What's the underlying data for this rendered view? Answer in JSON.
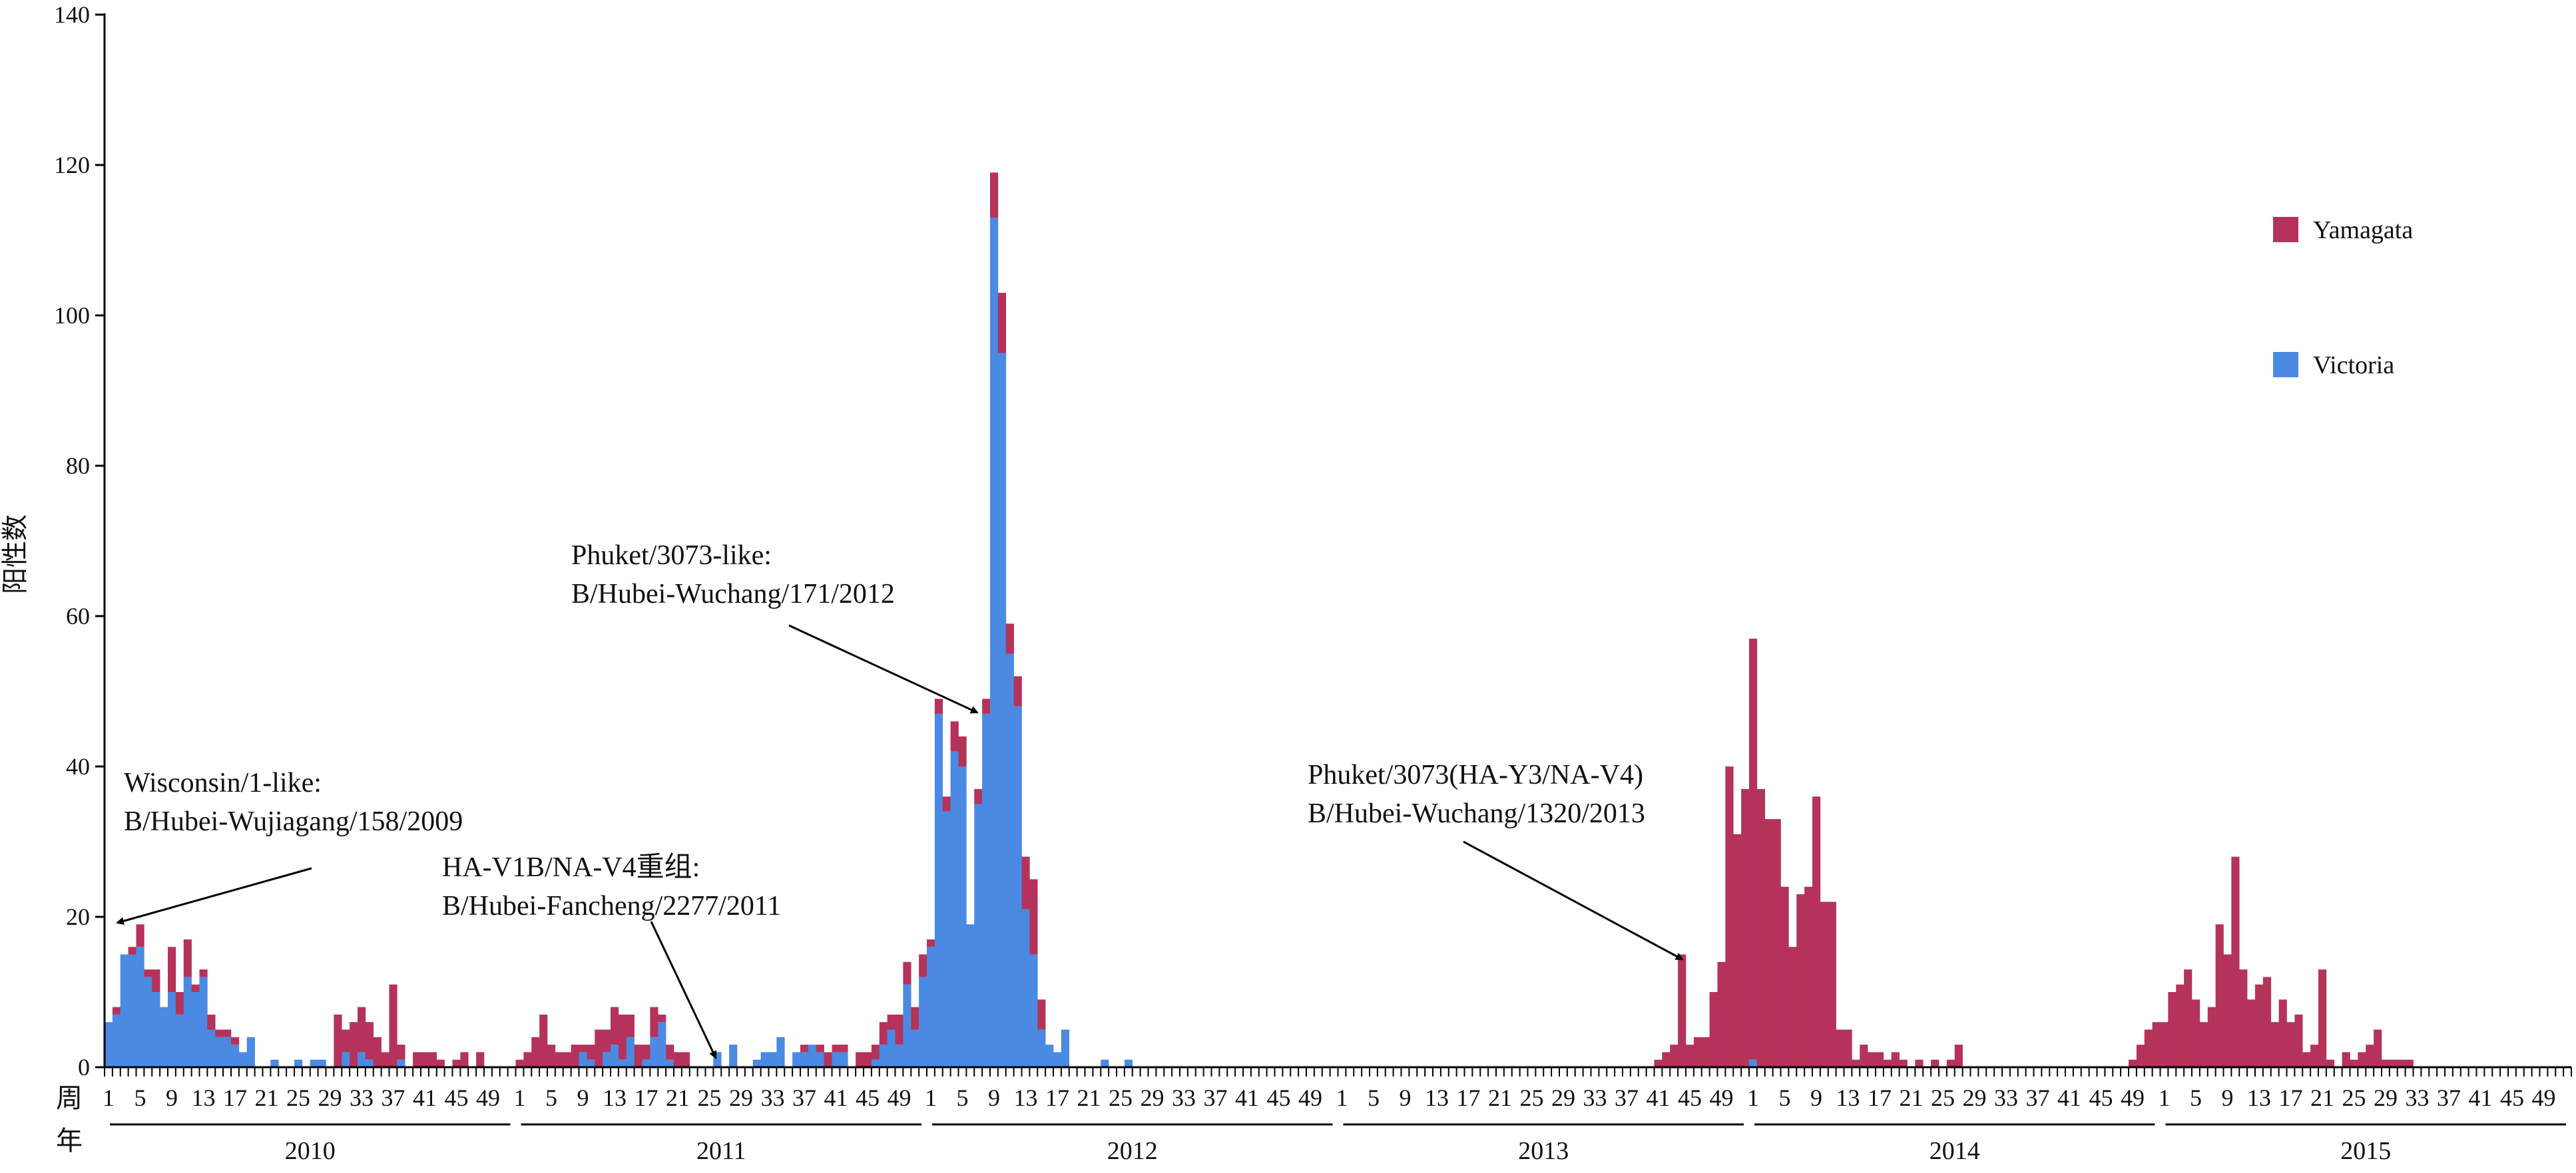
{
  "chart_data": {
    "type": "bar",
    "stacked": true,
    "ylabel": "阳性数",
    "xlabel_week": "周",
    "xlabel_year": "年",
    "ylim": [
      0,
      140
    ],
    "yticks": [
      0,
      20,
      40,
      60,
      80,
      100,
      120,
      140
    ],
    "week_tick_labels": [
      "1",
      "5",
      "9",
      "13",
      "17",
      "21",
      "25",
      "29",
      "33",
      "37",
      "41",
      "45",
      "49"
    ],
    "years": [
      "2010",
      "2011",
      "2012",
      "2013",
      "2014",
      "2015"
    ],
    "weeks_per_year": 52,
    "series": [
      {
        "name": "Victoria",
        "color": "#4a8ae3",
        "values": [
          6,
          7,
          15,
          15,
          16,
          12,
          10,
          8,
          10,
          7,
          12,
          10,
          12,
          5,
          4,
          4,
          3,
          2,
          4,
          0,
          0,
          1,
          0,
          0,
          1,
          0,
          1,
          1,
          0,
          0,
          2,
          0,
          2,
          1,
          0,
          0,
          0,
          1,
          0,
          0,
          0,
          0,
          0,
          0,
          0,
          0,
          0,
          0,
          0,
          0,
          0,
          0,
          0,
          0,
          0,
          0,
          0,
          0,
          0,
          0,
          2,
          1,
          0,
          2,
          3,
          1,
          4,
          0,
          1,
          4,
          6,
          1,
          0,
          0,
          0,
          0,
          0,
          2,
          0,
          3,
          0,
          0,
          1,
          2,
          2,
          4,
          0,
          2,
          2,
          3,
          2,
          0,
          2,
          2,
          0,
          0,
          0,
          1,
          3,
          5,
          3,
          11,
          5,
          12,
          16,
          47,
          34,
          42,
          40,
          19,
          35,
          47,
          113,
          95,
          55,
          48,
          21,
          15,
          5,
          3,
          2,
          5,
          0,
          0,
          0,
          0,
          1,
          0,
          0,
          1,
          0,
          0,
          0,
          0,
          0,
          0,
          0,
          0,
          0,
          0,
          0,
          0,
          0,
          0,
          0,
          0,
          0,
          0,
          0,
          0,
          0,
          0,
          0,
          0,
          0,
          0,
          0,
          0,
          0,
          0,
          0,
          0,
          0,
          0,
          0,
          0,
          0,
          0,
          0,
          0,
          0,
          0,
          0,
          0,
          0,
          0,
          0,
          0,
          0,
          0,
          0,
          0,
          0,
          0,
          0,
          0,
          0,
          0,
          0,
          0,
          0,
          0,
          0,
          0,
          0,
          0,
          0,
          0,
          0,
          0,
          0,
          0,
          0,
          0,
          0,
          0,
          0,
          0,
          1,
          0,
          0,
          0,
          0,
          0,
          0,
          0,
          0,
          0,
          0,
          0,
          0,
          0,
          0,
          0,
          0,
          0,
          0,
          0,
          0,
          0,
          0,
          0,
          0,
          0,
          0,
          0,
          0,
          0,
          0,
          0,
          0,
          0,
          0,
          0,
          0,
          0,
          0,
          0,
          0,
          0,
          0,
          0,
          0,
          0,
          0,
          0,
          0,
          0,
          0,
          0,
          0,
          0,
          0,
          0,
          0,
          0,
          0,
          0,
          0,
          0,
          0,
          0,
          0,
          0,
          0,
          0,
          0,
          0,
          0,
          0,
          0,
          0,
          0,
          0,
          0,
          0,
          0,
          0,
          0,
          0,
          0,
          0,
          0,
          0,
          0,
          0,
          0,
          0,
          0,
          0,
          0,
          0,
          0,
          0,
          0,
          0,
          0,
          0,
          0,
          0,
          0,
          0
        ]
      },
      {
        "name": "Yamagata",
        "color": "#b5335a",
        "values": [
          0,
          1,
          0,
          1,
          3,
          1,
          3,
          0,
          6,
          3,
          5,
          1,
          1,
          2,
          1,
          1,
          1,
          0,
          0,
          0,
          0,
          0,
          0,
          0,
          0,
          0,
          0,
          0,
          0,
          7,
          3,
          6,
          6,
          5,
          4,
          2,
          11,
          2,
          0,
          2,
          2,
          2,
          1,
          0,
          1,
          2,
          0,
          2,
          0,
          0,
          0,
          0,
          1,
          2,
          4,
          7,
          3,
          2,
          2,
          3,
          1,
          2,
          5,
          3,
          5,
          6,
          3,
          3,
          2,
          4,
          1,
          2,
          2,
          2,
          0,
          0,
          0,
          0,
          0,
          0,
          0,
          0,
          0,
          0,
          0,
          0,
          0,
          0,
          1,
          0,
          1,
          2,
          1,
          1,
          0,
          2,
          2,
          2,
          3,
          2,
          4,
          3,
          3,
          3,
          1,
          2,
          2,
          4,
          4,
          0,
          2,
          2,
          6,
          8,
          4,
          4,
          7,
          10,
          4,
          0,
          0,
          0,
          0,
          0,
          0,
          0,
          0,
          0,
          0,
          0,
          0,
          0,
          0,
          0,
          0,
          0,
          0,
          0,
          0,
          0,
          0,
          0,
          0,
          0,
          0,
          0,
          0,
          0,
          0,
          0,
          0,
          0,
          0,
          0,
          0,
          0,
          0,
          0,
          0,
          0,
          0,
          0,
          0,
          0,
          0,
          0,
          0,
          0,
          0,
          0,
          0,
          0,
          0,
          0,
          0,
          0,
          0,
          0,
          0,
          0,
          0,
          0,
          0,
          0,
          0,
          0,
          0,
          0,
          0,
          0,
          0,
          0,
          0,
          0,
          0,
          0,
          1,
          2,
          3,
          15,
          3,
          4,
          4,
          10,
          14,
          40,
          31,
          37,
          56,
          37,
          33,
          33,
          24,
          16,
          23,
          24,
          36,
          22,
          22,
          5,
          5,
          1,
          3,
          2,
          2,
          1,
          2,
          1,
          0,
          1,
          0,
          1,
          0,
          1,
          3,
          0,
          0,
          0,
          0,
          0,
          0,
          0,
          0,
          0,
          0,
          0,
          0,
          0,
          0,
          0,
          0,
          0,
          0,
          0,
          0,
          0,
          1,
          3,
          5,
          6,
          6,
          10,
          11,
          13,
          9,
          6,
          8,
          19,
          15,
          28,
          13,
          9,
          11,
          12,
          6,
          9,
          6,
          7,
          2,
          3,
          13,
          1,
          0,
          2,
          1,
          2,
          3,
          5,
          1,
          1,
          1,
          1,
          0,
          0,
          0,
          0,
          0,
          0,
          0,
          0,
          0,
          0,
          0,
          0,
          0,
          0,
          0,
          0
        ]
      }
    ],
    "annotations": [
      {
        "line1": "Wisconsin/1-like:",
        "line2": "B/Hubei-Wujiagang/158/2009"
      },
      {
        "line1": "HA-V1B/NA-V4重组:",
        "line2": "B/Hubei-Fancheng/2277/2011"
      },
      {
        "line1": "Phuket/3073-like:",
        "line2": "B/Hubei-Wuchang/171/2012"
      },
      {
        "line1": "Phuket/3073(HA-Y3/NA-V4)",
        "line2": "B/Hubei-Wuchang/1320/2013"
      }
    ],
    "legend_position": "top-right"
  }
}
